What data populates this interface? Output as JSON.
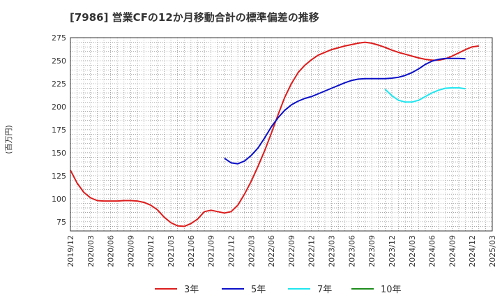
{
  "chart_data": {
    "type": "line",
    "title": "[7986]  営業CFの12か月移動合計の標準偏差の推移",
    "ylabel": "(百万円)",
    "xlabel": "",
    "ylim": [
      65,
      275
    ],
    "yticks": [
      75,
      100,
      125,
      150,
      175,
      200,
      225,
      250,
      275
    ],
    "x_ticks": [
      "2019/12",
      "2020/03",
      "2020/06",
      "2020/09",
      "2020/12",
      "2021/03",
      "2021/06",
      "2021/09",
      "2021/12",
      "2022/03",
      "2022/06",
      "2022/09",
      "2022/12",
      "2023/03",
      "2023/06",
      "2023/09",
      "2023/12",
      "2024/03",
      "2024/06",
      "2024/09",
      "2024/12",
      "2025/03"
    ],
    "grid": true,
    "legend_position": "bottom",
    "series": [
      {
        "name": "3年",
        "color": "#dd1c1c",
        "start": "2019/12",
        "values": [
          131,
          117,
          107,
          101,
          98,
          97.5,
          97.5,
          97.5,
          98,
          98,
          97.5,
          96,
          93,
          88,
          80,
          74,
          70.5,
          70,
          73,
          78,
          86,
          87.5,
          86,
          84.5,
          86,
          93,
          105,
          119,
          135,
          152,
          171,
          191,
          210,
          225,
          237,
          245,
          251,
          256,
          259,
          262,
          264,
          266,
          267.5,
          269,
          270,
          269,
          267,
          264.5,
          261.5,
          259,
          257,
          255,
          253,
          251.5,
          250.5,
          250.5,
          252,
          255,
          258.5,
          262,
          265,
          266
        ]
      },
      {
        "name": "5年",
        "color": "#0b10c8",
        "start": "2021/11",
        "values": [
          144,
          139,
          138,
          141,
          147,
          155,
          166,
          178,
          188,
          196,
          202,
          206,
          209,
          211,
          214,
          217,
          220,
          223,
          226,
          228.5,
          230,
          230.5,
          230.5,
          230.5,
          230.5,
          231,
          232,
          234,
          237,
          241,
          246,
          249.5,
          251.5,
          252.5,
          252.5,
          252.5,
          252
        ]
      },
      {
        "name": "7年",
        "color": "#1ee6f0",
        "start": "2023/11",
        "values": [
          219,
          212,
          207,
          205,
          205,
          207,
          211,
          215,
          218,
          220,
          220.5,
          220.5,
          219.5
        ]
      },
      {
        "name": "10年",
        "color": "#1c8c1c",
        "start": "2019/12",
        "values": []
      }
    ]
  }
}
